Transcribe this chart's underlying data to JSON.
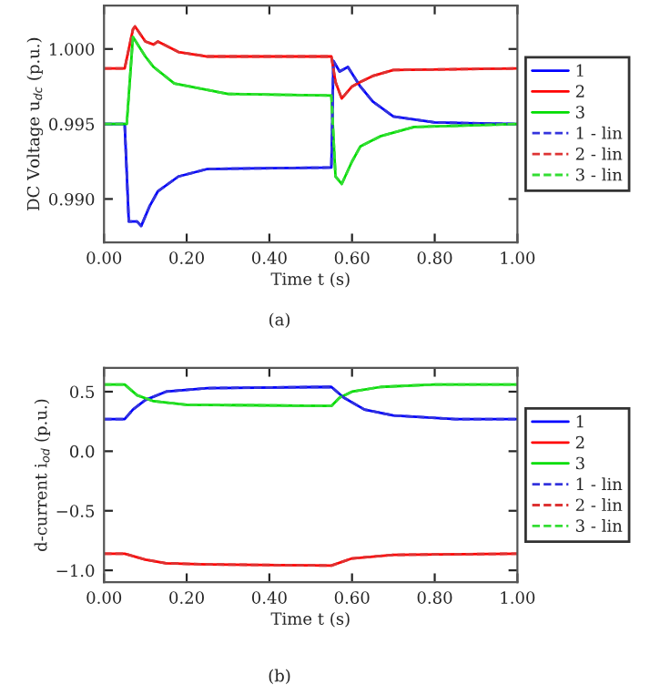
{
  "chart_data": [
    {
      "type": "line",
      "xlabel": "Time t (s)",
      "ylabel": "DC Voltage u$_{dc}$ (p.u.)",
      "annotations": [
        "(a)"
      ],
      "xlim": [
        0,
        1
      ],
      "ylim": [
        0.9871,
        1.0029
      ],
      "xticks": [
        {
          "value": 0,
          "label": "0.00"
        },
        {
          "value": 0.2,
          "label": "0.20"
        },
        {
          "value": 0.4,
          "label": "0.40"
        },
        {
          "value": 0.6,
          "label": "0.60"
        },
        {
          "value": 0.8,
          "label": "0.80"
        },
        {
          "value": 1,
          "label": "1.00"
        }
      ],
      "yticks": [
        {
          "value": 0.99,
          "label": "0.990"
        },
        {
          "value": 0.995,
          "label": "0.995"
        },
        {
          "value": 1.0,
          "label": "1.000"
        }
      ],
      "grid": false,
      "legend": "right",
      "marker": "none",
      "series": [
        {
          "name": "1",
          "color": "#0000ff",
          "line_style": "solid",
          "x": [
            0,
            0.05,
            0.06,
            0.08,
            0.09,
            0.11,
            0.13,
            0.18,
            0.25,
            0.55,
            0.555,
            0.57,
            0.59,
            0.62,
            0.65,
            0.7,
            0.8,
            1
          ],
          "values": [
            0.995,
            0.995,
            0.9885,
            0.9885,
            0.9882,
            0.9895,
            0.9905,
            0.9915,
            0.992,
            0.9921,
            0.9992,
            0.9985,
            0.9988,
            0.9975,
            0.9965,
            0.9955,
            0.9951,
            0.995
          ]
        },
        {
          "name": "2",
          "color": "#ff0000",
          "line_style": "solid",
          "x": [
            0,
            0.05,
            0.07,
            0.075,
            0.1,
            0.12,
            0.13,
            0.18,
            0.25,
            0.55,
            0.56,
            0.575,
            0.6,
            0.62,
            0.65,
            0.7,
            1
          ],
          "values": [
            0.9987,
            0.9987,
            1.0013,
            1.0015,
            1.0005,
            1.0003,
            1.0005,
            0.9998,
            0.9995,
            0.9995,
            0.9978,
            0.9967,
            0.9975,
            0.9978,
            0.9982,
            0.9986,
            0.9987
          ]
        },
        {
          "name": "3",
          "color": "#00dd00",
          "line_style": "solid",
          "x": [
            0,
            0.055,
            0.07,
            0.1,
            0.12,
            0.17,
            0.3,
            0.55,
            0.56,
            0.575,
            0.6,
            0.62,
            0.67,
            0.75,
            1
          ],
          "values": [
            0.995,
            0.995,
            1.0008,
            0.9995,
            0.9988,
            0.9977,
            0.997,
            0.9969,
            0.9915,
            0.991,
            0.9925,
            0.9935,
            0.9942,
            0.9948,
            0.995
          ]
        },
        {
          "name": "1 - lin",
          "color": "#3333dd",
          "line_style": "dashed",
          "x": [
            0,
            0.05,
            0.06,
            0.08,
            0.09,
            0.11,
            0.13,
            0.18,
            0.25,
            0.55,
            0.555,
            0.57,
            0.59,
            0.62,
            0.65,
            0.7,
            0.8,
            1
          ],
          "values": [
            0.995,
            0.995,
            0.9885,
            0.9885,
            0.9882,
            0.9895,
            0.9905,
            0.9915,
            0.992,
            0.9921,
            0.9992,
            0.9985,
            0.9988,
            0.9975,
            0.9965,
            0.9955,
            0.9951,
            0.995
          ]
        },
        {
          "name": "2 - lin",
          "color": "#dd3333",
          "line_style": "dashed",
          "x": [
            0,
            0.05,
            0.07,
            0.075,
            0.1,
            0.12,
            0.13,
            0.18,
            0.25,
            0.55,
            0.56,
            0.575,
            0.6,
            0.62,
            0.65,
            0.7,
            1
          ],
          "values": [
            0.9987,
            0.9987,
            1.0013,
            1.0015,
            1.0005,
            1.0003,
            1.0005,
            0.9998,
            0.9995,
            0.9995,
            0.9978,
            0.9967,
            0.9975,
            0.9978,
            0.9982,
            0.9986,
            0.9987
          ]
        },
        {
          "name": "3 - lin",
          "color": "#33dd33",
          "line_style": "dashed",
          "x": [
            0,
            0.055,
            0.07,
            0.1,
            0.12,
            0.17,
            0.3,
            0.55,
            0.56,
            0.575,
            0.6,
            0.62,
            0.67,
            0.75,
            1
          ],
          "values": [
            0.995,
            0.995,
            1.0008,
            0.9995,
            0.9988,
            0.9977,
            0.997,
            0.9969,
            0.9915,
            0.991,
            0.9925,
            0.9935,
            0.9942,
            0.9948,
            0.995
          ]
        }
      ]
    },
    {
      "type": "line",
      "xlabel": "Time t (s)",
      "ylabel": "d-current i$_{od}$ (p.u.)",
      "annotations": [
        "(b)"
      ],
      "xlim": [
        0,
        1
      ],
      "ylim": [
        -1.1,
        0.7
      ],
      "xticks": [
        {
          "value": 0,
          "label": "0.00"
        },
        {
          "value": 0.2,
          "label": "0.20"
        },
        {
          "value": 0.4,
          "label": "0.40"
        },
        {
          "value": 0.6,
          "label": "0.60"
        },
        {
          "value": 0.8,
          "label": "0.80"
        },
        {
          "value": 1,
          "label": "1.00"
        }
      ],
      "yticks": [
        {
          "value": -1.0,
          "label": "−1.0"
        },
        {
          "value": -0.5,
          "label": "−0.5"
        },
        {
          "value": 0.0,
          "label": "0.0"
        },
        {
          "value": 0.5,
          "label": "0.5"
        }
      ],
      "grid": false,
      "legend": "right",
      "marker": "none",
      "series": [
        {
          "name": "1",
          "color": "#0000ff",
          "line_style": "solid",
          "x": [
            0,
            0.05,
            0.07,
            0.1,
            0.15,
            0.25,
            0.55,
            0.58,
            0.63,
            0.7,
            0.85,
            1
          ],
          "values": [
            0.27,
            0.27,
            0.35,
            0.43,
            0.5,
            0.53,
            0.54,
            0.45,
            0.35,
            0.3,
            0.27,
            0.27
          ]
        },
        {
          "name": "2",
          "color": "#ff0000",
          "line_style": "solid",
          "x": [
            0,
            0.05,
            0.1,
            0.15,
            0.25,
            0.55,
            0.6,
            0.7,
            1
          ],
          "values": [
            -0.86,
            -0.86,
            -0.91,
            -0.94,
            -0.95,
            -0.96,
            -0.9,
            -0.87,
            -0.86
          ]
        },
        {
          "name": "3",
          "color": "#00dd00",
          "line_style": "solid",
          "x": [
            0,
            0.05,
            0.08,
            0.12,
            0.2,
            0.55,
            0.57,
            0.6,
            0.67,
            0.8,
            1
          ],
          "values": [
            0.56,
            0.56,
            0.47,
            0.42,
            0.39,
            0.38,
            0.45,
            0.5,
            0.54,
            0.56,
            0.56
          ]
        },
        {
          "name": "1 - lin",
          "color": "#3333dd",
          "line_style": "dashed",
          "x": [
            0,
            0.05,
            0.07,
            0.1,
            0.15,
            0.25,
            0.55,
            0.58,
            0.63,
            0.7,
            0.85,
            1
          ],
          "values": [
            0.27,
            0.27,
            0.35,
            0.43,
            0.5,
            0.53,
            0.54,
            0.45,
            0.35,
            0.3,
            0.27,
            0.27
          ]
        },
        {
          "name": "2 - lin",
          "color": "#dd3333",
          "line_style": "dashed",
          "x": [
            0,
            0.05,
            0.1,
            0.15,
            0.25,
            0.55,
            0.6,
            0.7,
            1
          ],
          "values": [
            -0.86,
            -0.86,
            -0.91,
            -0.94,
            -0.95,
            -0.96,
            -0.9,
            -0.87,
            -0.86
          ]
        },
        {
          "name": "3 - lin",
          "color": "#33dd33",
          "line_style": "dashed",
          "x": [
            0,
            0.05,
            0.08,
            0.12,
            0.2,
            0.55,
            0.57,
            0.6,
            0.67,
            0.8,
            1
          ],
          "values": [
            0.56,
            0.56,
            0.47,
            0.42,
            0.39,
            0.38,
            0.45,
            0.5,
            0.54,
            0.56,
            0.56
          ]
        }
      ]
    }
  ]
}
